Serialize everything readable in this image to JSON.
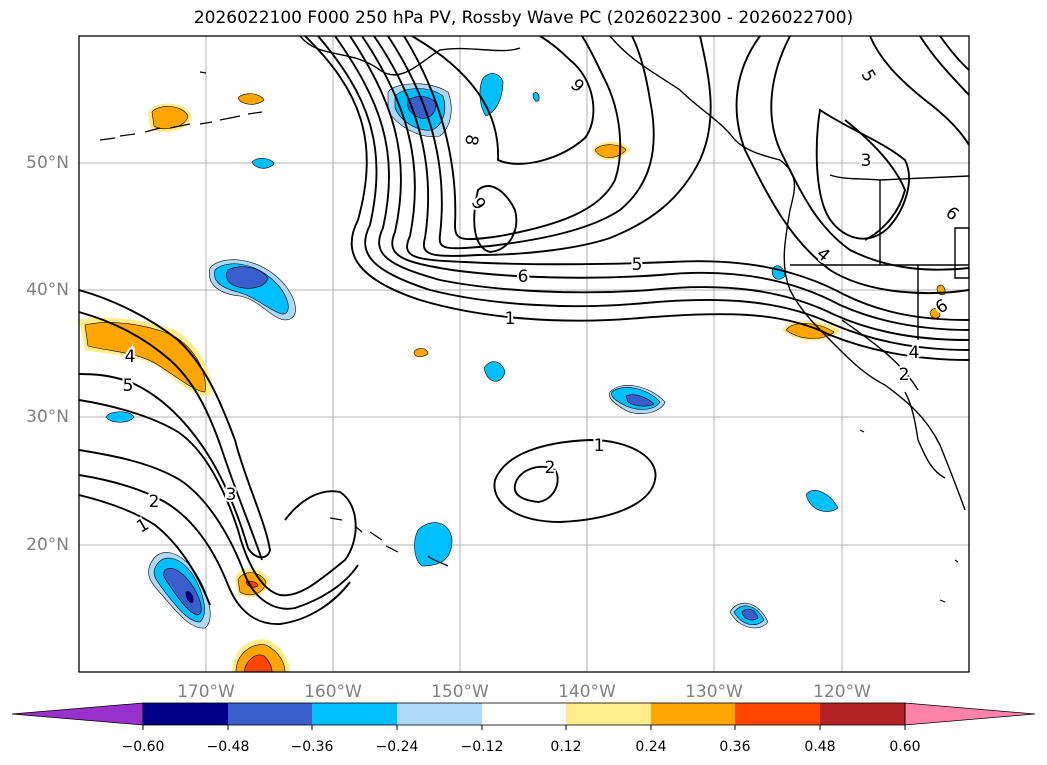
{
  "title": "2026022100 F000 250 hPa PV, Rossby Wave PC (2026022300 - 2026022700)",
  "map": {
    "lon_range": [
      -180,
      -110
    ],
    "lat_range": [
      10,
      60
    ],
    "lat_labels": [
      "50°N",
      "40°N",
      "30°N",
      "20°N"
    ],
    "lon_labels": [
      "170°W",
      "160°W",
      "150°W",
      "140°W",
      "130°W",
      "120°W"
    ],
    "contour_labels": [
      "9",
      "8",
      "9",
      "6",
      "5",
      "1",
      "5",
      "3",
      "4",
      "6",
      "6",
      "4",
      "2",
      "4",
      "5",
      "3",
      "2",
      "1",
      "1",
      "2"
    ],
    "fill_colors": {
      "neg_060": "#9932cc",
      "neg_048": "#00008b",
      "neg_036": "#3a5fcd",
      "neg_024": "#00bfff",
      "neg_012": "#add8f6",
      "neutral": "#ffffff",
      "pos_012": "#ffec8b",
      "pos_024": "#ffa500",
      "pos_036": "#ff4500",
      "pos_048": "#b22222",
      "pos_060": "#ff82ab"
    }
  },
  "colorbar": {
    "ticks": [
      "−0.60",
      "−0.48",
      "−0.36",
      "−0.24",
      "−0.12",
      "0.12",
      "0.24",
      "0.36",
      "0.48",
      "0.60"
    ],
    "levels": [
      -0.6,
      -0.48,
      -0.36,
      -0.24,
      -0.12,
      0.12,
      0.24,
      0.36,
      0.48,
      0.6
    ],
    "colors": [
      "#9932cc",
      "#00008b",
      "#3a5fcd",
      "#00bfff",
      "#add8f6",
      "#ffffff",
      "#ffec8b",
      "#ffa500",
      "#ff4500",
      "#b22222",
      "#ff82ab"
    ]
  }
}
